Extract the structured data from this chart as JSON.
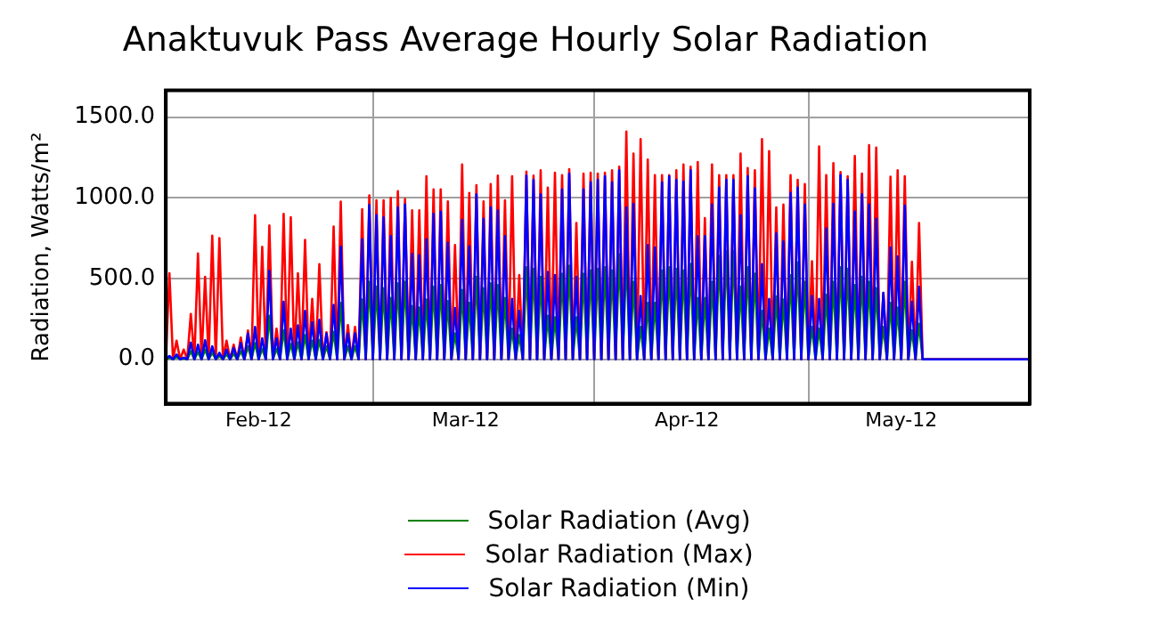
{
  "chart_data": {
    "type": "line",
    "title": "Anaktuvuk Pass Average Hourly Solar Radiation",
    "ylabel": "Radiation, Watts/m²",
    "x": [
      "2012-02-01T00:00",
      "2012-02-01T12:00",
      "2012-02-02T00:00",
      "2012-02-02T12:00",
      "2012-02-03T00:00",
      "2012-02-03T12:00",
      "2012-02-04T00:00",
      "2012-02-04T12:00",
      "2012-02-05T00:00",
      "2012-02-05T12:00",
      "2012-02-06T00:00",
      "2012-02-06T12:00",
      "2012-02-07T00:00",
      "2012-02-07T12:00",
      "2012-02-08T00:00",
      "2012-02-08T12:00",
      "2012-02-09T00:00",
      "2012-02-09T12:00",
      "2012-02-10T00:00",
      "2012-02-10T12:00",
      "2012-02-11T00:00",
      "2012-02-11T12:00",
      "2012-02-12T00:00",
      "2012-02-12T12:00",
      "2012-02-13T00:00",
      "2012-02-13T12:00",
      "2012-02-14T00:00",
      "2012-02-14T12:00",
      "2012-02-15T00:00",
      "2012-02-15T12:00",
      "2012-02-16T00:00",
      "2012-02-16T12:00",
      "2012-02-17T00:00",
      "2012-02-17T12:00",
      "2012-02-18T00:00",
      "2012-02-18T12:00",
      "2012-02-19T00:00",
      "2012-02-19T12:00",
      "2012-02-20T00:00",
      "2012-02-20T12:00",
      "2012-02-21T00:00",
      "2012-02-21T12:00",
      "2012-02-22T00:00",
      "2012-02-22T12:00",
      "2012-02-23T00:00",
      "2012-02-23T12:00",
      "2012-02-24T00:00",
      "2012-02-24T12:00",
      "2012-02-25T00:00",
      "2012-02-25T12:00",
      "2012-02-26T00:00",
      "2012-02-26T12:00",
      "2012-02-27T00:00",
      "2012-02-27T12:00",
      "2012-02-28T00:00",
      "2012-02-28T12:00",
      "2012-02-29T00:00",
      "2012-02-29T12:00",
      "2012-03-01T00:00",
      "2012-03-01T12:00",
      "2012-03-02T00:00",
      "2012-03-02T12:00",
      "2012-03-03T00:00",
      "2012-03-03T12:00",
      "2012-03-04T00:00",
      "2012-03-04T12:00",
      "2012-03-05T00:00",
      "2012-03-05T12:00",
      "2012-03-06T00:00",
      "2012-03-06T12:00",
      "2012-03-07T00:00",
      "2012-03-07T12:00",
      "2012-03-08T00:00",
      "2012-03-08T12:00",
      "2012-03-09T00:00",
      "2012-03-09T12:00",
      "2012-03-10T00:00",
      "2012-03-10T12:00",
      "2012-03-11T00:00",
      "2012-03-11T12:00",
      "2012-03-12T00:00",
      "2012-03-12T12:00",
      "2012-03-13T00:00",
      "2012-03-13T12:00",
      "2012-03-14T00:00",
      "2012-03-14T12:00",
      "2012-03-15T00:00",
      "2012-03-15T12:00",
      "2012-03-16T00:00",
      "2012-03-16T12:00",
      "2012-03-17T00:00",
      "2012-03-17T12:00",
      "2012-03-18T00:00",
      "2012-03-18T12:00",
      "2012-03-19T00:00",
      "2012-03-19T12:00",
      "2012-03-20T00:00",
      "2012-03-20T12:00",
      "2012-03-21T00:00",
      "2012-03-21T12:00",
      "2012-03-22T00:00",
      "2012-03-22T12:00",
      "2012-03-23T00:00",
      "2012-03-23T12:00",
      "2012-03-24T00:00",
      "2012-03-24T12:00",
      "2012-03-25T00:00",
      "2012-03-25T12:00",
      "2012-03-26T00:00",
      "2012-03-26T12:00",
      "2012-03-27T00:00",
      "2012-03-27T12:00",
      "2012-03-28T00:00",
      "2012-03-28T12:00",
      "2012-03-29T00:00",
      "2012-03-29T12:00",
      "2012-03-30T00:00",
      "2012-03-30T12:00",
      "2012-03-31T00:00",
      "2012-03-31T12:00",
      "2012-04-01T00:00",
      "2012-04-01T12:00",
      "2012-04-02T00:00",
      "2012-04-02T12:00",
      "2012-04-03T00:00",
      "2012-04-03T12:00",
      "2012-04-04T00:00",
      "2012-04-04T12:00",
      "2012-04-05T00:00",
      "2012-04-05T12:00",
      "2012-04-06T00:00",
      "2012-04-06T12:00",
      "2012-04-07T00:00",
      "2012-04-07T12:00",
      "2012-04-08T00:00",
      "2012-04-08T12:00",
      "2012-04-09T00:00",
      "2012-04-09T12:00",
      "2012-04-10T00:00",
      "2012-04-10T12:00",
      "2012-04-11T00:00",
      "2012-04-11T12:00",
      "2012-04-12T00:00",
      "2012-04-12T12:00",
      "2012-04-13T00:00",
      "2012-04-13T12:00",
      "2012-04-14T00:00",
      "2012-04-14T12:00",
      "2012-04-15T00:00",
      "2012-04-15T12:00",
      "2012-04-16T00:00",
      "2012-04-16T12:00",
      "2012-04-17T00:00",
      "2012-04-17T12:00",
      "2012-04-18T00:00",
      "2012-04-18T12:00",
      "2012-04-19T00:00",
      "2012-04-19T12:00",
      "2012-04-20T00:00",
      "2012-04-20T12:00",
      "2012-04-21T00:00",
      "2012-04-21T12:00",
      "2012-04-22T00:00",
      "2012-04-22T12:00",
      "2012-04-23T00:00",
      "2012-04-23T12:00",
      "2012-04-24T00:00",
      "2012-04-24T12:00",
      "2012-04-25T00:00",
      "2012-04-25T12:00",
      "2012-04-26T00:00",
      "2012-04-26T12:00",
      "2012-04-27T00:00",
      "2012-04-27T12:00",
      "2012-04-28T00:00",
      "2012-04-28T12:00",
      "2012-04-29T00:00",
      "2012-04-29T12:00",
      "2012-04-30T00:00",
      "2012-04-30T12:00",
      "2012-05-01T00:00",
      "2012-05-01T12:00",
      "2012-05-02T00:00",
      "2012-05-02T12:00",
      "2012-05-03T00:00",
      "2012-05-03T12:00",
      "2012-05-04T00:00",
      "2012-05-04T12:00",
      "2012-05-05T00:00",
      "2012-05-05T12:00",
      "2012-05-06T00:00",
      "2012-05-06T12:00",
      "2012-05-07T00:00",
      "2012-05-07T12:00",
      "2012-05-08T00:00",
      "2012-05-08T12:00",
      "2012-05-09T00:00",
      "2012-05-09T12:00",
      "2012-05-10T00:00",
      "2012-05-10T12:00",
      "2012-05-11T00:00",
      "2012-05-11T12:00",
      "2012-05-12T00:00",
      "2012-05-12T12:00",
      "2012-05-13T00:00",
      "2012-05-13T12:00",
      "2012-05-14T00:00",
      "2012-05-14T12:00",
      "2012-05-15T00:00",
      "2012-05-15T12:00",
      "2012-05-16T00:00",
      "2012-05-16T12:00",
      "2012-05-17T00:00",
      "2012-06-01T00:00"
    ],
    "series": [
      {
        "name": "Solar Radiation (Avg)",
        "color": "#008000",
        "values": [
          0,
          10,
          0,
          15,
          0,
          5,
          0,
          50,
          0,
          45,
          0,
          60,
          0,
          40,
          0,
          20,
          0,
          30,
          0,
          35,
          0,
          50,
          0,
          80,
          0,
          100,
          0,
          65,
          0,
          270,
          0,
          65,
          0,
          180,
          0,
          95,
          0,
          105,
          0,
          150,
          0,
          115,
          0,
          120,
          0,
          80,
          0,
          170,
          0,
          350,
          0,
          80,
          0,
          80,
          0,
          370,
          0,
          480,
          0,
          450,
          0,
          440,
          0,
          380,
          0,
          470,
          0,
          480,
          0,
          330,
          0,
          320,
          0,
          370,
          0,
          450,
          0,
          460,
          0,
          360,
          0,
          160,
          0,
          430,
          0,
          350,
          0,
          510,
          0,
          440,
          0,
          470,
          0,
          460,
          0,
          380,
          0,
          190,
          0,
          150,
          0,
          570,
          0,
          560,
          0,
          510,
          0,
          270,
          0,
          260,
          0,
          530,
          0,
          580,
          0,
          260,
          0,
          530,
          0,
          550,
          0,
          560,
          0,
          570,
          0,
          550,
          0,
          650,
          0,
          640,
          0,
          480,
          0,
          200,
          0,
          350,
          0,
          350,
          0,
          550,
          0,
          570,
          0,
          560,
          0,
          550,
          0,
          590,
          0,
          380,
          0,
          380,
          0,
          480,
          0,
          640,
          0,
          670,
          0,
          670,
          0,
          450,
          0,
          570,
          0,
          530,
          0,
          300,
          0,
          190,
          0,
          390,
          0,
          370,
          0,
          520,
          0,
          600,
          0,
          480,
          0,
          200,
          0,
          190,
          0,
          400,
          0,
          480,
          0,
          570,
          0,
          560,
          0,
          460,
          0,
          510,
          0,
          480,
          0,
          440,
          0,
          200,
          0,
          350,
          0,
          320,
          0,
          480,
          0,
          180,
          0,
          220,
          0,
          0
        ]
      },
      {
        "name": "Solar Radiation (Max)",
        "color": "#ff0000",
        "values": [
          0,
          533,
          0,
          115,
          0,
          60,
          0,
          281,
          0,
          655,
          0,
          511,
          0,
          766,
          0,
          750,
          0,
          115,
          0,
          90,
          0,
          135,
          0,
          178,
          0,
          892,
          0,
          696,
          0,
          829,
          0,
          190,
          0,
          900,
          0,
          880,
          0,
          533,
          0,
          740,
          0,
          374,
          0,
          589,
          0,
          167,
          0,
          822,
          0,
          977,
          0,
          212,
          0,
          200,
          0,
          930,
          0,
          1015,
          0,
          985,
          0,
          985,
          0,
          1000,
          0,
          1041,
          0,
          993,
          0,
          922,
          0,
          922,
          0,
          1133,
          0,
          1052,
          0,
          1052,
          0,
          978,
          0,
          707,
          0,
          1207,
          0,
          1030,
          0,
          1078,
          0,
          978,
          0,
          1085,
          0,
          1137,
          0,
          985,
          0,
          1133,
          0,
          522,
          0,
          1163,
          0,
          1137,
          0,
          1170,
          0,
          1063,
          0,
          1156,
          0,
          1141,
          0,
          1178,
          0,
          844,
          0,
          1150,
          0,
          1156,
          0,
          1150,
          0,
          1156,
          0,
          1170,
          0,
          1193,
          0,
          1411,
          0,
          1274,
          0,
          1363,
          0,
          1237,
          0,
          1141,
          0,
          1141,
          0,
          1141,
          0,
          1170,
          0,
          1207,
          0,
          1193,
          0,
          1222,
          0,
          874,
          0,
          1207,
          0,
          1141,
          0,
          1141,
          0,
          1141,
          0,
          1274,
          0,
          1185,
          0,
          1170,
          0,
          1363,
          0,
          1289,
          0,
          941,
          0,
          959,
          0,
          1141,
          0,
          1111,
          0,
          1085,
          0,
          607,
          0,
          1318,
          0,
          1141,
          0,
          1215,
          0,
          1159,
          0,
          1133,
          0,
          1259,
          0,
          1150,
          0,
          1326,
          0,
          1311,
          0,
          411,
          0,
          1130,
          0,
          1170,
          0,
          1133,
          0,
          604,
          0,
          844,
          0,
          0
        ]
      },
      {
        "name": "Solar Radiation (Min)",
        "color": "#0000ff",
        "values": [
          0,
          20,
          0,
          30,
          0,
          10,
          0,
          103,
          0,
          90,
          0,
          118,
          0,
          80,
          0,
          40,
          0,
          60,
          0,
          70,
          0,
          100,
          0,
          160,
          0,
          200,
          0,
          130,
          0,
          548,
          0,
          130,
          0,
          356,
          0,
          190,
          0,
          210,
          0,
          300,
          0,
          230,
          0,
          245,
          0,
          160,
          0,
          337,
          0,
          696,
          0,
          160,
          0,
          160,
          0,
          744,
          0,
          955,
          0,
          892,
          0,
          878,
          0,
          763,
          0,
          941,
          0,
          959,
          0,
          652,
          0,
          644,
          0,
          744,
          0,
          900,
          0,
          915,
          0,
          722,
          0,
          318,
          0,
          863,
          0,
          700,
          0,
          1022,
          0,
          870,
          0,
          941,
          0,
          922,
          0,
          763,
          0,
          374,
          0,
          300,
          0,
          1137,
          0,
          1111,
          0,
          1022,
          0,
          541,
          0,
          522,
          0,
          1052,
          0,
          1150,
          0,
          511,
          0,
          1052,
          0,
          1096,
          0,
          1111,
          0,
          1133,
          0,
          1096,
          0,
          1170,
          0,
          941,
          0,
          963,
          0,
          392,
          0,
          707,
          0,
          693,
          0,
          1096,
          0,
          1133,
          0,
          1111,
          0,
          1100,
          0,
          1170,
          0,
          763,
          0,
          763,
          0,
          959,
          0,
          1063,
          0,
          1111,
          0,
          1111,
          0,
          892,
          0,
          1133,
          0,
          1059,
          0,
          589,
          0,
          374,
          0,
          781,
          0,
          730,
          0,
          1030,
          0,
          1063,
          0,
          959,
          0,
          392,
          0,
          374,
          0,
          811,
          0,
          963,
          0,
          1141,
          0,
          1111,
          0,
          915,
          0,
          1022,
          0,
          959,
          0,
          870,
          0,
          411,
          0,
          693,
          0,
          637,
          0,
          952,
          0,
          356,
          0,
          448,
          0,
          0
        ]
      }
    ],
    "xlim": [
      "2012-02-01",
      "2012-06-01"
    ],
    "xticks": [
      {
        "value": "2012-02-14",
        "label": "Feb-12"
      },
      {
        "value": "2012-03-01",
        "label": null
      },
      {
        "value": "2012-03-14",
        "label": "Mar-12"
      },
      {
        "value": "2012-04-01",
        "label": null
      },
      {
        "value": "2012-04-14",
        "label": "Apr-12"
      },
      {
        "value": "2012-05-01",
        "label": null
      },
      {
        "value": "2012-05-14",
        "label": "May-12"
      }
    ],
    "ylim": [
      -275,
      1665
    ],
    "yticks": [
      {
        "value": 0,
        "label": "0.0"
      },
      {
        "value": 500,
        "label": "500.0"
      },
      {
        "value": 1000,
        "label": "1000.0"
      },
      {
        "value": 1500,
        "label": "1500.0"
      }
    ],
    "grid": true,
    "legend": "bottom",
    "marker": "none",
    "line_style": "solid"
  }
}
